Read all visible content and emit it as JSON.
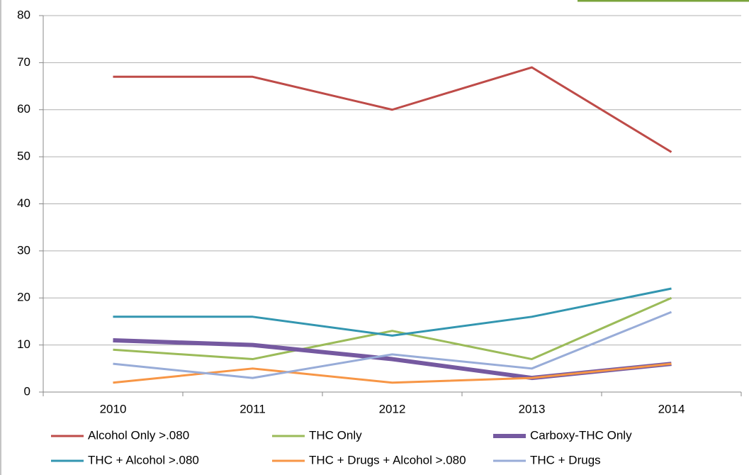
{
  "chart_data": {
    "type": "line",
    "categories": [
      "2010",
      "2011",
      "2012",
      "2013",
      "2014"
    ],
    "series": [
      {
        "name": "Alcohol Only >.080",
        "color": "#be4b48",
        "values": [
          67,
          67,
          60,
          69,
          51
        ]
      },
      {
        "name": "THC Only",
        "color": "#9bbb59",
        "values": [
          9,
          7,
          13,
          7,
          20
        ]
      },
      {
        "name": "Carboxy-THC Only",
        "color": "#7559a0",
        "values": [
          11,
          10,
          7,
          3,
          6
        ]
      },
      {
        "name": "THC + Alcohol >.080",
        "color": "#3396b0",
        "values": [
          16,
          16,
          12,
          16,
          22
        ]
      },
      {
        "name": "THC + Drugs + Alcohol >.080",
        "color": "#f79646",
        "values": [
          2,
          5,
          2,
          3,
          6
        ]
      },
      {
        "name": "THC + Drugs",
        "color": "#98acd8",
        "values": [
          6,
          3,
          8,
          5,
          17
        ]
      }
    ],
    "ylim": [
      0,
      80
    ],
    "yticks": [
      0,
      10,
      20,
      30,
      40,
      50,
      60,
      70,
      80
    ],
    "grid": true
  }
}
